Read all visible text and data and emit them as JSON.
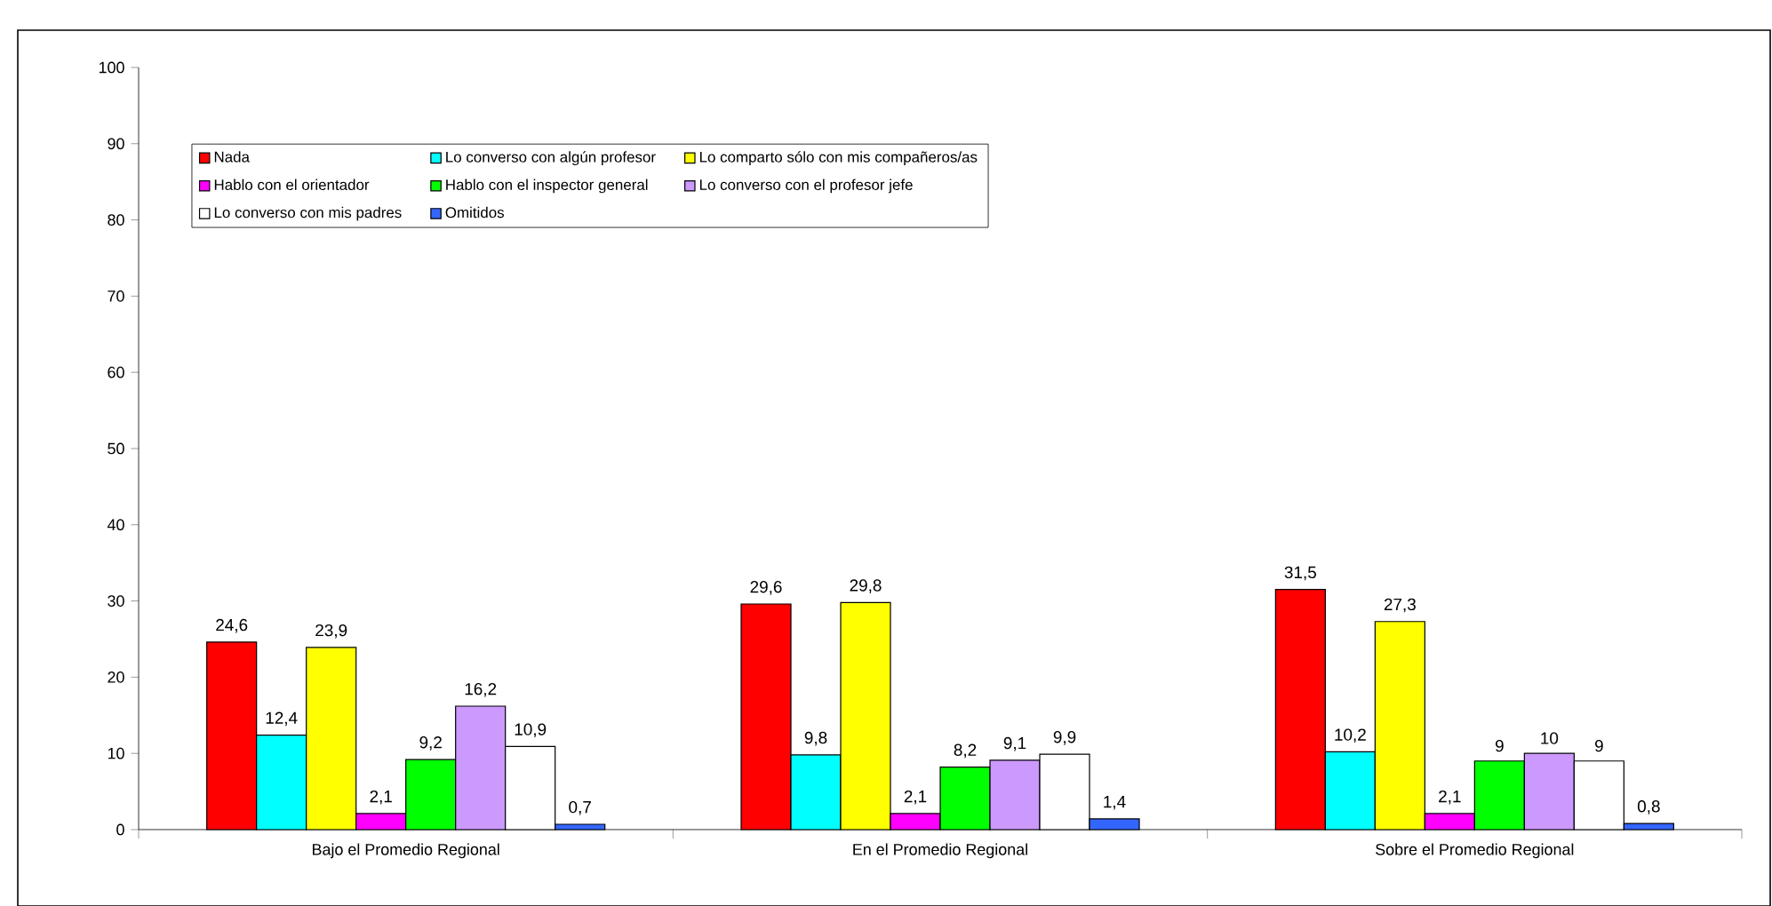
{
  "chart_data": {
    "type": "bar",
    "categories": [
      "Bajo el Promedio Regional",
      "En el Promedio Regional",
      "Sobre el Promedio Regional"
    ],
    "series": [
      {
        "name": "Nada",
        "color": "#ff0000",
        "values": [
          24.6,
          29.6,
          31.5
        ],
        "value_labels": [
          "24,6",
          "29,6",
          "31,5"
        ]
      },
      {
        "name": "Lo converso con algún profesor",
        "color": "#00ffff",
        "values": [
          12.4,
          9.8,
          10.2
        ],
        "value_labels": [
          "12,4",
          "9,8",
          "10,2"
        ]
      },
      {
        "name": "Lo comparto sólo con mis compañeros/as",
        "color": "#ffff00",
        "values": [
          23.9,
          29.8,
          27.3
        ],
        "value_labels": [
          "23,9",
          "29,8",
          "27,3"
        ]
      },
      {
        "name": "Hablo con el orientador",
        "color": "#ff00ff",
        "values": [
          2.1,
          2.1,
          2.1
        ],
        "value_labels": [
          "2,1",
          "2,1",
          "2,1"
        ]
      },
      {
        "name": "Hablo con el inspector general",
        "color": "#00ff00",
        "values": [
          9.2,
          8.2,
          9
        ],
        "value_labels": [
          "9,2",
          "8,2",
          "9"
        ]
      },
      {
        "name": "Lo converso con el profesor jefe",
        "color": "#cc99ff",
        "values": [
          16.2,
          9.1,
          10
        ],
        "value_labels": [
          "16,2",
          "9,1",
          "10"
        ]
      },
      {
        "name": "Lo converso con mis padres",
        "color": "#ffffff",
        "values": [
          10.9,
          9.9,
          9
        ],
        "value_labels": [
          "10,9",
          "9,9",
          "9"
        ]
      },
      {
        "name": "Omitidos",
        "color": "#3366ff",
        "values": [
          0.7,
          1.4,
          0.8
        ],
        "value_labels": [
          "0,7",
          "1,4",
          "0,8"
        ]
      }
    ],
    "ylim": [
      0,
      100
    ],
    "yticks": [
      0,
      10,
      20,
      30,
      40,
      50,
      60,
      70,
      80,
      90,
      100
    ],
    "legend": "top",
    "grid": false
  }
}
